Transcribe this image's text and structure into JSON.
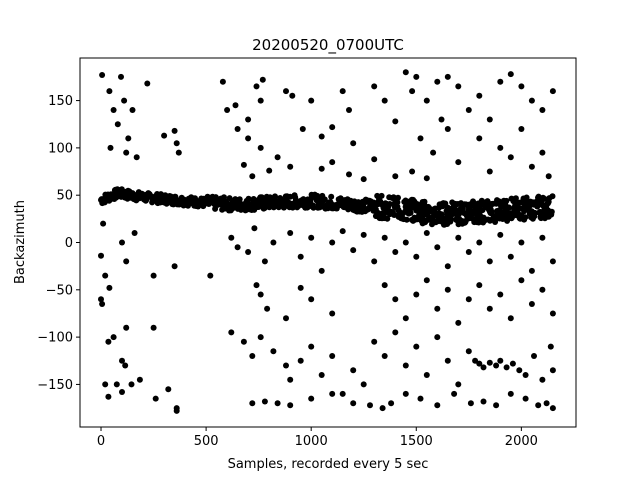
{
  "chart_data": {
    "type": "scatter",
    "title": "20200520_0700UTC",
    "xlabel": "Samples, recorded every 5 sec",
    "ylabel": "Backazimuth",
    "xlim": [
      -100,
      2260
    ],
    "ylim": [
      -195,
      195
    ],
    "xticks": [
      0,
      500,
      1000,
      1500,
      2000
    ],
    "yticks": [
      -150,
      -100,
      -50,
      0,
      50,
      100,
      150
    ],
    "grid": false,
    "marker_color": "#000000",
    "marker": "circle",
    "trend": [
      {
        "x": 0,
        "y": 45
      },
      {
        "x": 80,
        "y": 52
      },
      {
        "x": 200,
        "y": 48
      },
      {
        "x": 350,
        "y": 45
      },
      {
        "x": 500,
        "y": 42
      },
      {
        "x": 650,
        "y": 40
      },
      {
        "x": 800,
        "y": 42
      },
      {
        "x": 1000,
        "y": 44
      },
      {
        "x": 1200,
        "y": 40
      },
      {
        "x": 1400,
        "y": 36
      },
      {
        "x": 1600,
        "y": 30
      },
      {
        "x": 1800,
        "y": 32
      },
      {
        "x": 2000,
        "y": 36
      },
      {
        "x": 2150,
        "y": 38
      }
    ],
    "points": [
      {
        "x": 5,
        "y": 177
      },
      {
        "x": 40,
        "y": 160
      },
      {
        "x": 60,
        "y": 140
      },
      {
        "x": 95,
        "y": 175
      },
      {
        "x": 110,
        "y": 150
      },
      {
        "x": 130,
        "y": 110
      },
      {
        "x": 150,
        "y": 140
      },
      {
        "x": 220,
        "y": 168
      },
      {
        "x": 45,
        "y": 100
      },
      {
        "x": 80,
        "y": 125
      },
      {
        "x": 120,
        "y": 95
      },
      {
        "x": 170,
        "y": 90
      },
      {
        "x": 350,
        "y": 118
      },
      {
        "x": 360,
        "y": 105
      },
      {
        "x": 370,
        "y": 95
      },
      {
        "x": 300,
        "y": 113
      },
      {
        "x": 10,
        "y": 20
      },
      {
        "x": 0,
        "y": -14
      },
      {
        "x": 20,
        "y": -35
      },
      {
        "x": 40,
        "y": -48
      },
      {
        "x": 100,
        "y": 0
      },
      {
        "x": 160,
        "y": 10
      },
      {
        "x": 120,
        "y": -20
      },
      {
        "x": 250,
        "y": -35
      },
      {
        "x": 350,
        "y": -25
      },
      {
        "x": 0,
        "y": -60
      },
      {
        "x": 5,
        "y": -65
      },
      {
        "x": 35,
        "y": -105
      },
      {
        "x": 60,
        "y": -100
      },
      {
        "x": 120,
        "y": -90
      },
      {
        "x": 100,
        "y": -125
      },
      {
        "x": 115,
        "y": -130
      },
      {
        "x": 145,
        "y": -150
      },
      {
        "x": 250,
        "y": -90
      },
      {
        "x": 20,
        "y": -150
      },
      {
        "x": 35,
        "y": -163
      },
      {
        "x": 75,
        "y": -150
      },
      {
        "x": 100,
        "y": -158
      },
      {
        "x": 185,
        "y": -145
      },
      {
        "x": 260,
        "y": -165
      },
      {
        "x": 320,
        "y": -155
      },
      {
        "x": 360,
        "y": -175
      },
      {
        "x": 360,
        "y": -178
      },
      {
        "x": 580,
        "y": 170
      },
      {
        "x": 640,
        "y": 145
      },
      {
        "x": 700,
        "y": 130
      },
      {
        "x": 740,
        "y": 165
      },
      {
        "x": 760,
        "y": 150
      },
      {
        "x": 770,
        "y": 172
      },
      {
        "x": 600,
        "y": 140
      },
      {
        "x": 650,
        "y": 120
      },
      {
        "x": 700,
        "y": 110
      },
      {
        "x": 760,
        "y": 100
      },
      {
        "x": 840,
        "y": 90
      },
      {
        "x": 880,
        "y": 160
      },
      {
        "x": 910,
        "y": 155
      },
      {
        "x": 960,
        "y": 120
      },
      {
        "x": 1000,
        "y": 150
      },
      {
        "x": 1050,
        "y": 112
      },
      {
        "x": 1100,
        "y": 122
      },
      {
        "x": 1150,
        "y": 160
      },
      {
        "x": 1180,
        "y": 140
      },
      {
        "x": 1200,
        "y": 105
      },
      {
        "x": 1300,
        "y": 165
      },
      {
        "x": 1350,
        "y": 150
      },
      {
        "x": 1400,
        "y": 128
      },
      {
        "x": 1450,
        "y": 180
      },
      {
        "x": 1480,
        "y": 160
      },
      {
        "x": 1500,
        "y": 175
      },
      {
        "x": 1550,
        "y": 150
      },
      {
        "x": 1600,
        "y": 170
      },
      {
        "x": 1620,
        "y": 130
      },
      {
        "x": 1650,
        "y": 175
      },
      {
        "x": 1700,
        "y": 165
      },
      {
        "x": 1750,
        "y": 140
      },
      {
        "x": 1800,
        "y": 155
      },
      {
        "x": 1850,
        "y": 130
      },
      {
        "x": 1900,
        "y": 170
      },
      {
        "x": 1950,
        "y": 178
      },
      {
        "x": 2000,
        "y": 165
      },
      {
        "x": 2050,
        "y": 150
      },
      {
        "x": 2100,
        "y": 140
      },
      {
        "x": 2150,
        "y": 160
      },
      {
        "x": 1520,
        "y": 110
      },
      {
        "x": 1580,
        "y": 95
      },
      {
        "x": 1650,
        "y": 120
      },
      {
        "x": 1700,
        "y": 85
      },
      {
        "x": 1800,
        "y": 110
      },
      {
        "x": 1850,
        "y": 75
      },
      {
        "x": 1900,
        "y": 100
      },
      {
        "x": 1950,
        "y": 90
      },
      {
        "x": 2000,
        "y": 120
      },
      {
        "x": 2050,
        "y": 80
      },
      {
        "x": 2100,
        "y": 95
      },
      {
        "x": 2130,
        "y": 70
      },
      {
        "x": 680,
        "y": 82
      },
      {
        "x": 720,
        "y": 70
      },
      {
        "x": 800,
        "y": 76
      },
      {
        "x": 900,
        "y": 80
      },
      {
        "x": 1050,
        "y": 78
      },
      {
        "x": 1100,
        "y": 85
      },
      {
        "x": 1180,
        "y": 72
      },
      {
        "x": 1250,
        "y": 67
      },
      {
        "x": 1300,
        "y": 88
      },
      {
        "x": 1400,
        "y": 70
      },
      {
        "x": 1480,
        "y": 75
      },
      {
        "x": 1550,
        "y": 68
      },
      {
        "x": 620,
        "y": 5
      },
      {
        "x": 650,
        "y": -5
      },
      {
        "x": 700,
        "y": -10
      },
      {
        "x": 730,
        "y": 15
      },
      {
        "x": 780,
        "y": -20
      },
      {
        "x": 820,
        "y": 0
      },
      {
        "x": 900,
        "y": 10
      },
      {
        "x": 950,
        "y": -15
      },
      {
        "x": 1000,
        "y": 5
      },
      {
        "x": 1050,
        "y": -30
      },
      {
        "x": 1100,
        "y": 0
      },
      {
        "x": 1150,
        "y": 12
      },
      {
        "x": 1200,
        "y": -8
      },
      {
        "x": 1250,
        "y": 8
      },
      {
        "x": 1300,
        "y": -20
      },
      {
        "x": 1350,
        "y": 5
      },
      {
        "x": 1400,
        "y": -10
      },
      {
        "x": 1450,
        "y": 0
      },
      {
        "x": 1500,
        "y": -15
      },
      {
        "x": 1550,
        "y": 10
      },
      {
        "x": 1600,
        "y": -5
      },
      {
        "x": 1650,
        "y": -25
      },
      {
        "x": 1700,
        "y": 5
      },
      {
        "x": 1750,
        "y": -10
      },
      {
        "x": 1800,
        "y": 0
      },
      {
        "x": 1850,
        "y": -20
      },
      {
        "x": 1900,
        "y": 8
      },
      {
        "x": 1950,
        "y": -15
      },
      {
        "x": 2000,
        "y": 0
      },
      {
        "x": 2050,
        "y": -30
      },
      {
        "x": 2100,
        "y": 5
      },
      {
        "x": 2150,
        "y": -20
      },
      {
        "x": 520,
        "y": -35
      },
      {
        "x": 740,
        "y": -45
      },
      {
        "x": 760,
        "y": -55
      },
      {
        "x": 790,
        "y": -70
      },
      {
        "x": 880,
        "y": -80
      },
      {
        "x": 950,
        "y": -48
      },
      {
        "x": 1000,
        "y": -60
      },
      {
        "x": 1100,
        "y": -75
      },
      {
        "x": 1350,
        "y": -45
      },
      {
        "x": 1400,
        "y": -60
      },
      {
        "x": 1450,
        "y": -80
      },
      {
        "x": 1500,
        "y": -55
      },
      {
        "x": 1550,
        "y": -40
      },
      {
        "x": 1600,
        "y": -70
      },
      {
        "x": 1650,
        "y": -50
      },
      {
        "x": 1700,
        "y": -85
      },
      {
        "x": 1750,
        "y": -60
      },
      {
        "x": 1800,
        "y": -45
      },
      {
        "x": 1850,
        "y": -70
      },
      {
        "x": 1900,
        "y": -55
      },
      {
        "x": 1950,
        "y": -80
      },
      {
        "x": 2000,
        "y": -40
      },
      {
        "x": 2050,
        "y": -65
      },
      {
        "x": 2100,
        "y": -50
      },
      {
        "x": 2150,
        "y": -75
      },
      {
        "x": 620,
        "y": -95
      },
      {
        "x": 680,
        "y": -105
      },
      {
        "x": 720,
        "y": -120
      },
      {
        "x": 760,
        "y": -100
      },
      {
        "x": 820,
        "y": -115
      },
      {
        "x": 880,
        "y": -130
      },
      {
        "x": 900,
        "y": -145
      },
      {
        "x": 950,
        "y": -125
      },
      {
        "x": 1000,
        "y": -110
      },
      {
        "x": 1050,
        "y": -140
      },
      {
        "x": 1100,
        "y": -120
      },
      {
        "x": 1150,
        "y": -160
      },
      {
        "x": 1200,
        "y": -135
      },
      {
        "x": 1250,
        "y": -150
      },
      {
        "x": 1300,
        "y": -105
      },
      {
        "x": 1350,
        "y": -120
      },
      {
        "x": 1400,
        "y": -95
      },
      {
        "x": 1450,
        "y": -130
      },
      {
        "x": 1500,
        "y": -110
      },
      {
        "x": 1550,
        "y": -140
      },
      {
        "x": 1600,
        "y": -100
      },
      {
        "x": 1650,
        "y": -125
      },
      {
        "x": 1700,
        "y": -150
      },
      {
        "x": 1750,
        "y": -115
      },
      {
        "x": 1780,
        "y": -125
      },
      {
        "x": 1800,
        "y": -128
      },
      {
        "x": 1820,
        "y": -132
      },
      {
        "x": 1850,
        "y": -127
      },
      {
        "x": 1880,
        "y": -130
      },
      {
        "x": 1900,
        "y": -125
      },
      {
        "x": 1930,
        "y": -132
      },
      {
        "x": 1960,
        "y": -128
      },
      {
        "x": 1990,
        "y": -135
      },
      {
        "x": 2020,
        "y": -140
      },
      {
        "x": 2060,
        "y": -120
      },
      {
        "x": 2100,
        "y": -145
      },
      {
        "x": 2140,
        "y": -110
      },
      {
        "x": 2150,
        "y": -135
      },
      {
        "x": 720,
        "y": -170
      },
      {
        "x": 780,
        "y": -168
      },
      {
        "x": 840,
        "y": -170
      },
      {
        "x": 900,
        "y": -172
      },
      {
        "x": 1000,
        "y": -165
      },
      {
        "x": 1100,
        "y": -160
      },
      {
        "x": 1200,
        "y": -170
      },
      {
        "x": 1280,
        "y": -172
      },
      {
        "x": 1340,
        "y": -175
      },
      {
        "x": 1380,
        "y": -170
      },
      {
        "x": 1450,
        "y": -160
      },
      {
        "x": 1520,
        "y": -165
      },
      {
        "x": 1600,
        "y": -172
      },
      {
        "x": 1680,
        "y": -160
      },
      {
        "x": 1760,
        "y": -170
      },
      {
        "x": 1820,
        "y": -168
      },
      {
        "x": 1880,
        "y": -172
      },
      {
        "x": 1950,
        "y": -160
      },
      {
        "x": 2020,
        "y": -165
      },
      {
        "x": 2080,
        "y": -172
      },
      {
        "x": 2120,
        "y": -170
      },
      {
        "x": 2150,
        "y": -175
      }
    ]
  }
}
